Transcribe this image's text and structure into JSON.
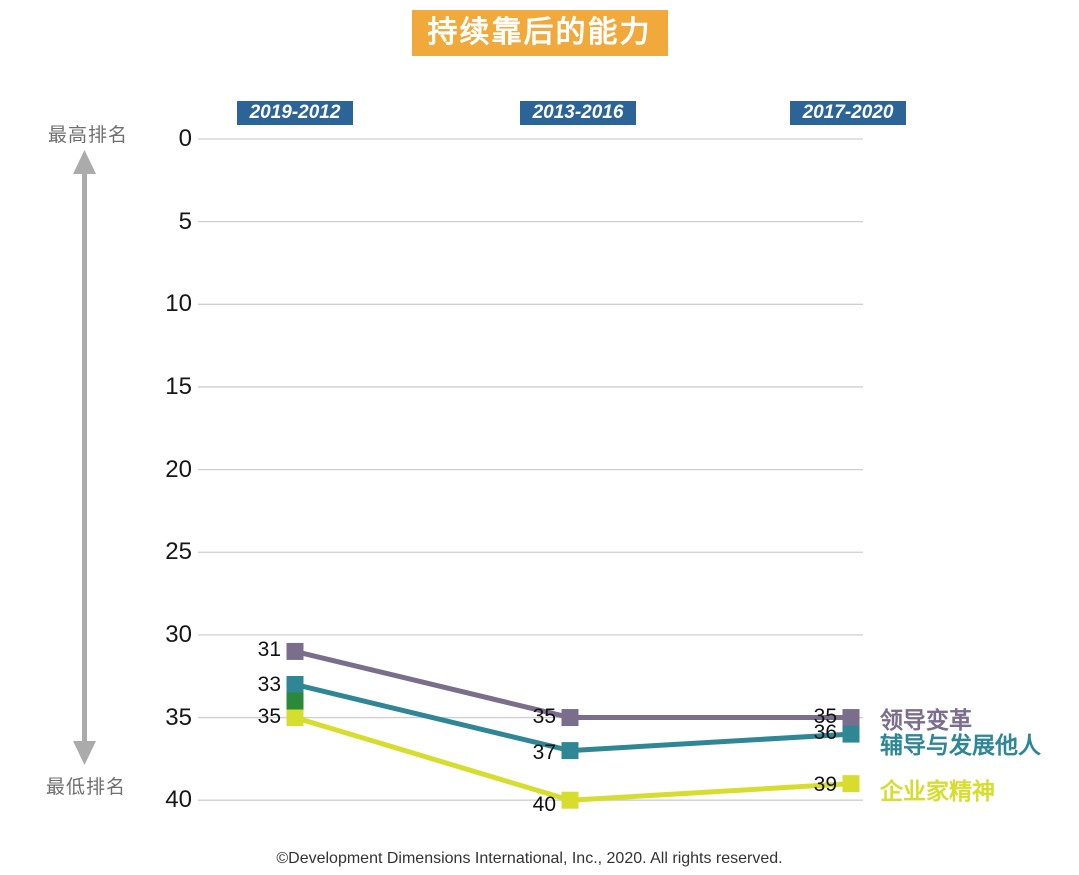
{
  "footer": "©Development Dimensions International, Inc., 2020. All rights reserved.",
  "chart_data": {
    "type": "line",
    "title": "持续靠后的能力",
    "categories": [
      "2019-2012",
      "2013-2016",
      "2017-2020"
    ],
    "y_axis": {
      "ticks": [
        0,
        5,
        10,
        15,
        20,
        25,
        30,
        35,
        40
      ],
      "direction": "inverted",
      "top_label": "最高排名",
      "bottom_label": "最低排名",
      "ylim": [
        0,
        40
      ]
    },
    "series": [
      {
        "name": "领导变革",
        "color": "#7A6E8C",
        "values": [
          31,
          35,
          35
        ]
      },
      {
        "name": "辅导与发展他人",
        "color": "#2F8795",
        "values": [
          33,
          37,
          36
        ]
      },
      {
        "name": "企业家精神",
        "color": "#D7DD2E",
        "values": [
          35,
          40,
          39
        ]
      }
    ],
    "extra_marker": {
      "category_index": 0,
      "value": 34,
      "color": "#2A8A3A"
    },
    "grid": true,
    "legend_position": "right-of-last-point"
  },
  "colors": {
    "title_bg": "#F0A93A",
    "title_text": "#FFFFFF",
    "period_bg": "#2D6497",
    "period_text": "#FFFFFF",
    "gridline": "#CFCFCF",
    "arrow": "#ABABAB"
  }
}
